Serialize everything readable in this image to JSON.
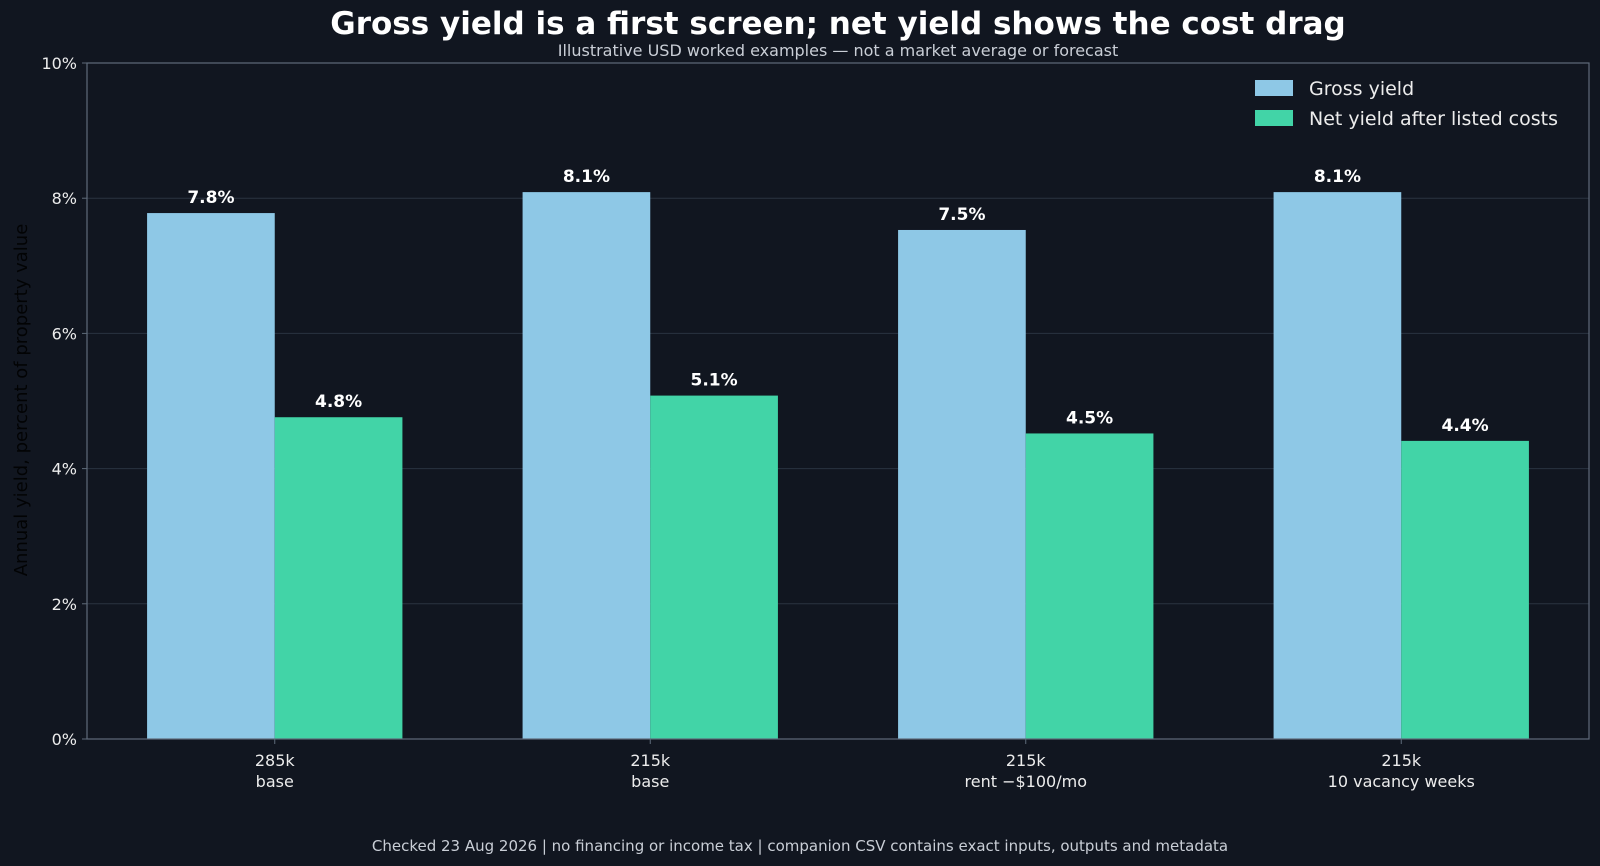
{
  "colors": {
    "background": "#111620",
    "plot_border": "#5f6b7a",
    "grid": "#2a3340",
    "gross": "#8ec8e6",
    "net": "#42d4a7",
    "text": "#ececec",
    "muted_text": "#c9ced6"
  },
  "chart_data": {
    "type": "bar",
    "title": "Gross yield is a first screen; net yield shows the cost drag",
    "subtitle": "Illustrative USD worked examples — not a market average or forecast",
    "xlabel": "",
    "ylabel": "Annual yield, percent of property value",
    "ylim": [
      0,
      10
    ],
    "yticks": [
      "0%",
      "2%",
      "4%",
      "6%",
      "8%",
      "10%"
    ],
    "grid": true,
    "legend_position": "top-right",
    "categories": [
      {
        "line1": "285k",
        "line2": "base"
      },
      {
        "line1": "215k",
        "line2": "base"
      },
      {
        "line1": "215k",
        "line2": "rent −$100/mo"
      },
      {
        "line1": "215k",
        "line2": "10 vacancy weeks"
      }
    ],
    "series": [
      {
        "name": "Gross yield",
        "color": "#8ec8e6",
        "values": [
          7.78,
          8.09,
          7.53,
          8.09
        ],
        "labels": [
          "7.8%",
          "8.1%",
          "7.5%",
          "8.1%"
        ]
      },
      {
        "name": "Net yield after listed costs",
        "color": "#42d4a7",
        "values": [
          4.76,
          5.08,
          4.52,
          4.41
        ],
        "labels": [
          "4.8%",
          "5.1%",
          "4.5%",
          "4.4%"
        ]
      }
    ],
    "footer": "Checked 23 Aug 2026 | no financing or income tax | companion CSV contains exact inputs, outputs and metadata"
  }
}
